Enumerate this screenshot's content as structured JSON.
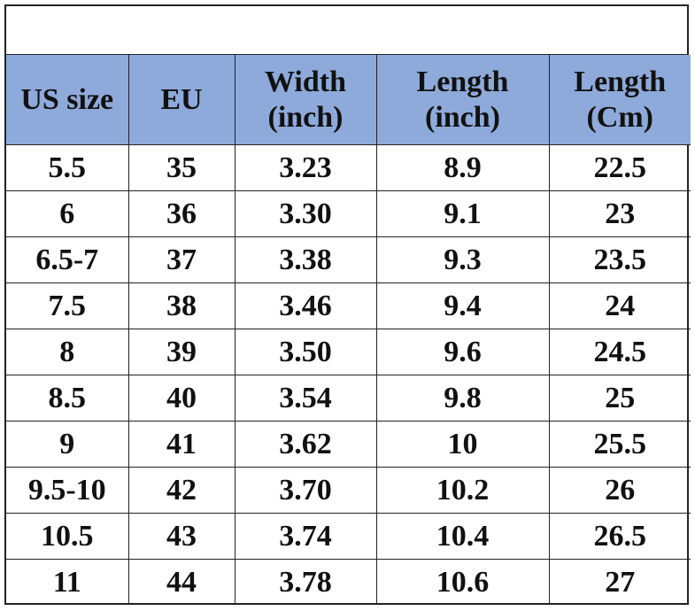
{
  "table": {
    "header": [
      "US size",
      "EU",
      "Width (inch)",
      "Length (inch)",
      "Length (Cm)"
    ],
    "rows": [
      [
        "5.5",
        "35",
        "3.23",
        "8.9",
        "22.5"
      ],
      [
        "6",
        "36",
        "3.30",
        "9.1",
        "23"
      ],
      [
        "6.5-7",
        "37",
        "3.38",
        "9.3",
        "23.5"
      ],
      [
        "7.5",
        "38",
        "3.46",
        "9.4",
        "24"
      ],
      [
        "8",
        "39",
        "3.50",
        "9.6",
        "24.5"
      ],
      [
        "8.5",
        "40",
        "3.54",
        "9.8",
        "25"
      ],
      [
        "9",
        "41",
        "3.62",
        "10",
        "25.5"
      ],
      [
        "9.5-10",
        "42",
        "3.70",
        "10.2",
        "26"
      ],
      [
        "10.5",
        "43",
        "3.74",
        "10.4",
        "26.5"
      ],
      [
        "11",
        "44",
        "3.78",
        "10.6",
        "27"
      ]
    ]
  }
}
